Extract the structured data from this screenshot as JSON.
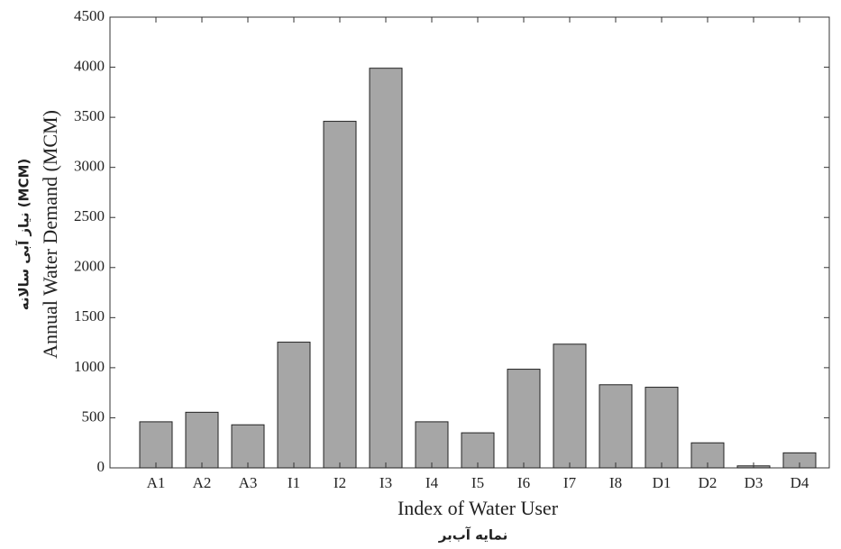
{
  "chart_data": {
    "type": "bar",
    "xlabel": "Index of Water User",
    "xlabel_fa": "نمایه آب‌بر",
    "ylabel": "Annual Water Demand (MCM)",
    "ylabel_fa": "نیاز آبی سالانه (MCM)",
    "categories": [
      "A1",
      "A2",
      "A3",
      "I1",
      "I2",
      "I3",
      "I4",
      "I5",
      "I6",
      "I7",
      "I8",
      "D1",
      "D2",
      "D3",
      "D4"
    ],
    "values": [
      460,
      555,
      430,
      1255,
      3460,
      3990,
      460,
      350,
      985,
      1235,
      830,
      805,
      250,
      20,
      150
    ],
    "color": "#a6a6a6",
    "ylim": [
      0,
      4500
    ],
    "yticks": [
      0,
      500,
      1000,
      1500,
      2000,
      2500,
      3000,
      3500,
      4000,
      4500
    ]
  }
}
